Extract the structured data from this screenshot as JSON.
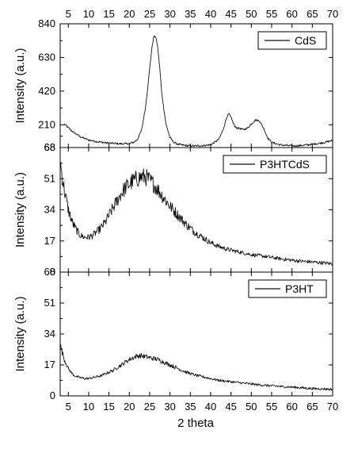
{
  "chart_data": {
    "type": "line",
    "xlabel": "2 theta",
    "xlim": [
      3,
      70
    ],
    "xticks": [
      5,
      10,
      15,
      20,
      25,
      30,
      35,
      40,
      45,
      50,
      55,
      60,
      65,
      70
    ],
    "panels": [
      {
        "ylabel": "Intensity (a.u.)",
        "ylim": [
          68,
          840
        ],
        "yticks": [
          68,
          210,
          420,
          630,
          840
        ],
        "legend": "top-right",
        "series": [
          {
            "name": "CdS",
            "x": [
              4,
              6,
              8,
              10,
              12,
              14,
              16,
              18,
              20,
              21,
              22,
              23,
              24,
              25,
              25.5,
              26,
              26.5,
              27,
              27.5,
              28,
              29,
              30,
              31,
              32,
              34,
              36,
              38,
              40,
              42,
              43,
              44,
              44.5,
              45,
              46,
              47,
              48,
              49,
              50,
              51,
              52,
              53,
              54,
              55,
              57,
              60,
              62,
              65,
              68,
              70
            ],
            "y": [
              215,
              168,
              135,
              115,
              105,
              98,
              94,
              91,
              93,
              100,
              118,
              175,
              320,
              560,
              680,
              760,
              760,
              690,
              560,
              400,
              215,
              130,
              100,
              88,
              80,
              78,
              80,
              85,
              118,
              175,
              262,
              278,
              255,
              195,
              188,
              180,
              188,
              215,
              240,
              235,
              190,
              130,
              100,
              85,
              78,
              80,
              88,
              100,
              112
            ]
          }
        ]
      },
      {
        "ylabel": "Intensity (a.u.)",
        "ylim": [
          0,
          68
        ],
        "yticks": [
          0,
          17,
          34,
          51,
          68
        ],
        "legend": "top-right",
        "series": [
          {
            "name": "P3HTCdS",
            "x": [
              3,
              4,
              5,
              6,
              7,
              8,
              9,
              10,
              11,
              12,
              13,
              14,
              15,
              16,
              17,
              18,
              19,
              20,
              21,
              22,
              23,
              24,
              25,
              26,
              27,
              28,
              29,
              30,
              32,
              34,
              36,
              38,
              40,
              42,
              44,
              46,
              48,
              50,
              52,
              55,
              58,
              60,
              62,
              65,
              68,
              70
            ],
            "y": [
              60,
              45,
              34,
              27,
              23,
              20,
              19,
              19,
              20,
              22,
              24,
              27,
              31,
              35,
              39,
              43,
              46,
              48,
              50,
              51,
              52,
              52,
              50,
              48,
              45,
              42,
              39,
              36,
              31,
              26,
              22,
              19,
              16,
              14,
              12.5,
              11.5,
              10.5,
              9.5,
              9,
              8,
              7,
              6.5,
              6,
              5.5,
              5,
              4.5
            ]
          }
        ]
      },
      {
        "ylabel": "Intensity (a.u.)",
        "ylim": [
          0,
          68
        ],
        "yticks": [
          0,
          17,
          34,
          51,
          68
        ],
        "legend": "top-right",
        "series": [
          {
            "name": "P3HT",
            "x": [
              3,
              4,
              5,
              6,
              7,
              8,
              9,
              10,
              11,
              12,
              13,
              14,
              15,
              16,
              17,
              18,
              19,
              20,
              21,
              22,
              23,
              24,
              25,
              26,
              27,
              28,
              29,
              30,
              32,
              34,
              36,
              38,
              40,
              42,
              44,
              46,
              48,
              50,
              52,
              55,
              58,
              60,
              62,
              65,
              68,
              70
            ],
            "y": [
              28,
              20,
              15,
              12,
              10.5,
              10,
              9.5,
              9.5,
              10,
              10.5,
              11,
              12,
              13,
              14,
              15.5,
              17,
              18.5,
              20,
              21,
              22,
              22,
              21.5,
              21,
              20.5,
              20,
              19,
              18,
              17,
              15,
              13,
              11.5,
              10.5,
              9.5,
              8.5,
              8,
              7.5,
              7,
              6.5,
              6,
              5.5,
              5,
              4.8,
              4.5,
              4,
              3.8,
              3.5
            ]
          }
        ]
      }
    ]
  }
}
